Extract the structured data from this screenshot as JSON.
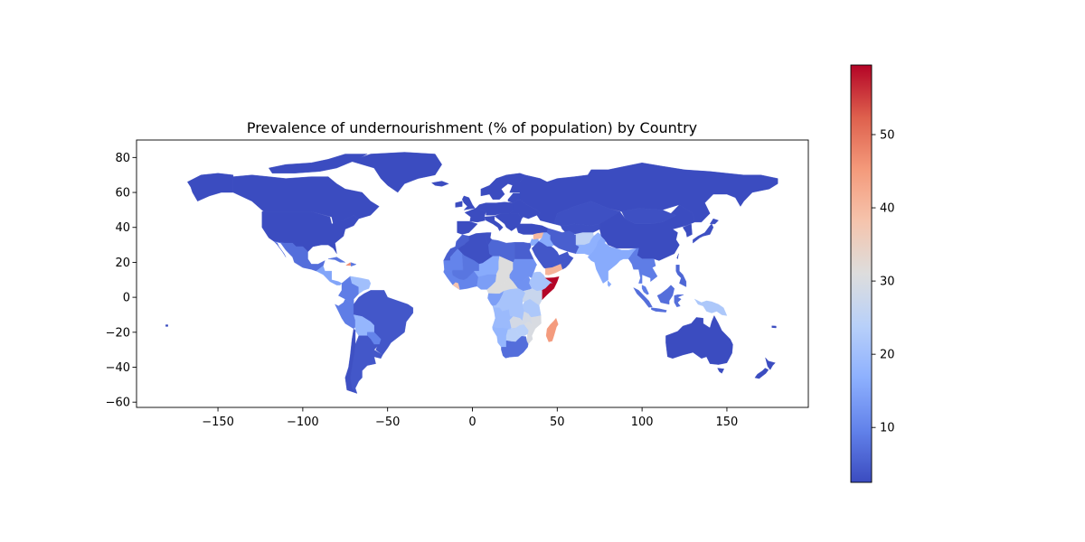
{
  "chart_data": {
    "type": "choropleth",
    "title": "Prevalence of undernourishment (% of population) by Country",
    "xlabel": "",
    "ylabel": "",
    "xlim": [
      -198,
      198
    ],
    "ylim": [
      -63,
      90
    ],
    "x_ticks": [
      -150,
      -100,
      -50,
      0,
      50,
      100,
      150
    ],
    "y_ticks": [
      -60,
      -40,
      -20,
      0,
      20,
      40,
      60,
      80
    ],
    "colorbar": {
      "cmap": "coolwarm",
      "min": 2.5,
      "max": 59.5,
      "ticks": [
        10,
        20,
        30,
        40,
        50
      ],
      "placement": "right"
    },
    "regions": [
      {
        "name": "Canada",
        "value": 2.5
      },
      {
        "name": "USA",
        "value": 2.5
      },
      {
        "name": "Mexico",
        "value": 7
      },
      {
        "name": "Central America",
        "value": 15
      },
      {
        "name": "Haiti",
        "value": 47
      },
      {
        "name": "Colombia",
        "value": 9
      },
      {
        "name": "Venezuela",
        "value": 20
      },
      {
        "name": "Peru",
        "value": 9
      },
      {
        "name": "Brazil",
        "value": 4
      },
      {
        "name": "Bolivia",
        "value": 18
      },
      {
        "name": "Paraguay",
        "value": 10
      },
      {
        "name": "Argentina",
        "value": 4
      },
      {
        "name": "Chile",
        "value": 3
      },
      {
        "name": "Greenland",
        "value": 2.5
      },
      {
        "name": "Iceland",
        "value": 2.5
      },
      {
        "name": "UK",
        "value": 2.5
      },
      {
        "name": "Europe",
        "value": 2.5
      },
      {
        "name": "Scandinavia",
        "value": 2.5
      },
      {
        "name": "Russia",
        "value": 2.5
      },
      {
        "name": "Kazakhstan",
        "value": 3
      },
      {
        "name": "Morocco",
        "value": 5
      },
      {
        "name": "Algeria",
        "value": 3
      },
      {
        "name": "Libya",
        "value": 6
      },
      {
        "name": "Mauritania",
        "value": 10
      },
      {
        "name": "Mali",
        "value": 8
      },
      {
        "name": "Niger",
        "value": 16
      },
      {
        "name": "Chad",
        "value": 31
      },
      {
        "name": "Sudan",
        "value": 12
      },
      {
        "name": "Egypt",
        "value": 5
      },
      {
        "name": "Nigeria",
        "value": 14
      },
      {
        "name": "Liberia",
        "value": 38
      },
      {
        "name": "Ethiopia",
        "value": 21
      },
      {
        "name": "Somalia",
        "value": 59.5
      },
      {
        "name": "Kenya",
        "value": 27
      },
      {
        "name": "Tanzania",
        "value": 22
      },
      {
        "name": "DR Congo",
        "value": 21
      },
      {
        "name": "Angola",
        "value": 19
      },
      {
        "name": "Zambia",
        "value": 29
      },
      {
        "name": "Mozambique",
        "value": 30
      },
      {
        "name": "Madagascar",
        "value": 45
      },
      {
        "name": "Namibia",
        "value": 18
      },
      {
        "name": "Botswana",
        "value": 24
      },
      {
        "name": "South Africa",
        "value": 7
      },
      {
        "name": "Turkey",
        "value": 2.5
      },
      {
        "name": "Syria",
        "value": 40
      },
      {
        "name": "Iraq",
        "value": 16
      },
      {
        "name": "Iran",
        "value": 5
      },
      {
        "name": "Saudi Arabia",
        "value": 4
      },
      {
        "name": "Yemen",
        "value": 41
      },
      {
        "name": "Afghanistan",
        "value": 25
      },
      {
        "name": "Pakistan",
        "value": 17
      },
      {
        "name": "India",
        "value": 16
      },
      {
        "name": "China",
        "value": 2.5
      },
      {
        "name": "Mongolia",
        "value": 3
      },
      {
        "name": "Japan",
        "value": 3
      },
      {
        "name": "Thailand",
        "value": 9
      },
      {
        "name": "Myanmar",
        "value": 8
      },
      {
        "name": "Indonesia",
        "value": 7
      },
      {
        "name": "Philippines",
        "value": 6
      },
      {
        "name": "Papua New Guinea",
        "value": 22
      },
      {
        "name": "Australia",
        "value": 2.5
      },
      {
        "name": "New Zealand",
        "value": 2.5
      }
    ]
  }
}
